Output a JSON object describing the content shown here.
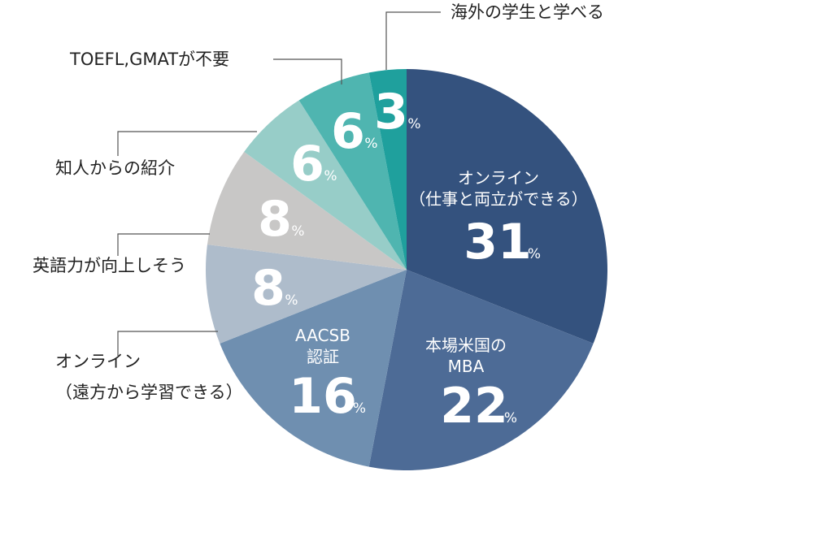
{
  "chart_data": {
    "type": "pie",
    "unit": "%",
    "slices": [
      {
        "label_lines": [
          "オンライン",
          "（仕事と両立ができる）"
        ],
        "value": 31,
        "color": "#34527e",
        "label_inside": true
      },
      {
        "label_lines": [
          "本場米国の",
          "MBA"
        ],
        "value": 22,
        "color": "#4d6b96",
        "label_inside": true
      },
      {
        "label_lines": [
          "AACSB",
          "認証"
        ],
        "value": 16,
        "color": "#6f8fb0",
        "label_inside": true
      },
      {
        "label_lines": [
          "オンライン",
          "（遠方から学習できる）"
        ],
        "value": 8,
        "color": "#aebccb",
        "label_inside": false
      },
      {
        "label_lines": [
          "英語力が向上しそう"
        ],
        "value": 8,
        "color": "#c8c7c6",
        "label_inside": false
      },
      {
        "label_lines": [
          "知人からの紹介"
        ],
        "value": 6,
        "color": "#97cdc8",
        "label_inside": false
      },
      {
        "label_lines": [
          "TOEFL,GMATが不要"
        ],
        "value": 6,
        "color": "#4fb5b0",
        "label_inside": false
      },
      {
        "label_lines": [
          "海外の学生と学べる"
        ],
        "value": 3,
        "color": "#1fa09d",
        "label_inside": false
      }
    ]
  }
}
